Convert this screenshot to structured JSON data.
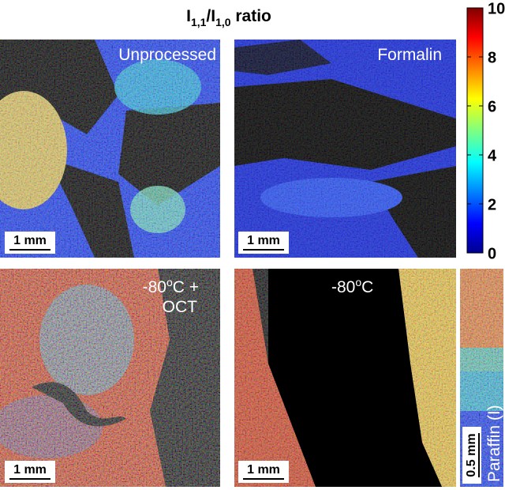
{
  "title": {
    "parts": [
      "I",
      "1,1",
      "/I",
      "1,0",
      " ratio"
    ]
  },
  "colorbar": {
    "lim": [
      0,
      10
    ],
    "ticks": [
      0,
      2,
      4,
      6,
      8,
      10
    ]
  },
  "panels": [
    {
      "label": [
        "Unprocessed"
      ],
      "scale_bar": "1 mm"
    },
    {
      "label": [
        "Formalin"
      ],
      "scale_bar": "1 mm"
    },
    {
      "label": [
        "-80",
        "o",
        "C +"
      ],
      "label_line2": "OCT",
      "scale_bar": "1 mm"
    },
    {
      "label": [
        "-80",
        "o",
        "C"
      ],
      "scale_bar": "1 mm"
    },
    {
      "label": [
        "Paraffin (I)"
      ],
      "scale_bar": "0.5 mm"
    }
  ]
}
